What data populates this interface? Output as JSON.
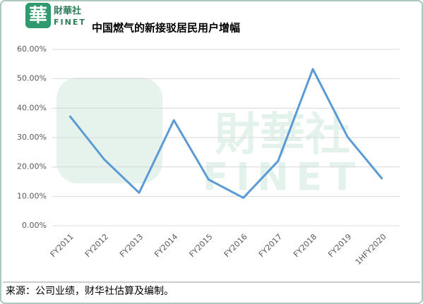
{
  "header": {
    "logo_mark": "華",
    "logo_name": "財華社",
    "logo_sub": "FINET"
  },
  "chart_data": {
    "type": "line",
    "title": "中国燃气的新接驳居民用户增幅",
    "categories": [
      "FY2011",
      "FY2012",
      "FY2013",
      "FY2014",
      "FY2015",
      "FY2016",
      "FY2017",
      "FY2018",
      "FY2019",
      "1HFY2020"
    ],
    "series": [
      {
        "name": "新接驳居民用户增幅",
        "color": "#5b9bd5",
        "values": [
          37.4,
          22.5,
          11.2,
          35.9,
          15.7,
          9.5,
          22.0,
          53.3,
          30.2,
          15.9
        ]
      }
    ],
    "ylim": [
      0,
      60
    ],
    "yticks": [
      {
        "value": 0,
        "label": "0.00%"
      },
      {
        "value": 10,
        "label": "10.00%"
      },
      {
        "value": 20,
        "label": "20.00%"
      },
      {
        "value": 30,
        "label": "30.00%"
      },
      {
        "value": 40,
        "label": "40.00%"
      },
      {
        "value": 50,
        "label": "50.00%"
      },
      {
        "value": 60,
        "label": "60.00%"
      }
    ],
    "grid": true,
    "legend": false,
    "source": "来源：公司业绩，财华社估算及编制。"
  }
}
